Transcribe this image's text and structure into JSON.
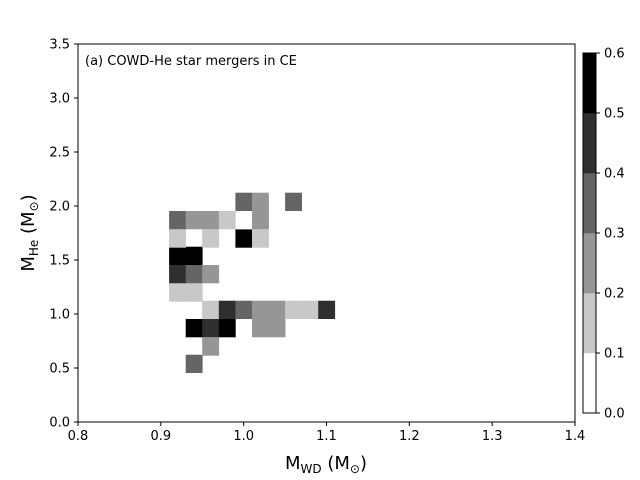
{
  "chart_data": {
    "type": "heatmap",
    "annotation": "(a) COWD-He star mergers in CE",
    "xlabel": {
      "main": "M",
      "sub": "WD",
      "unit": " (M",
      "unit_sub": "⊙",
      "close": ")"
    },
    "ylabel": {
      "main": "M",
      "sub": "He",
      "unit": " (M",
      "unit_sub": "⊙",
      "close": ")"
    },
    "xlim": [
      0.8,
      1.4
    ],
    "ylim": [
      0.0,
      3.5
    ],
    "xticks": [
      "0.8",
      "0.9",
      "1.0",
      "1.1",
      "1.2",
      "1.3",
      "1.4"
    ],
    "yticks": [
      "0.0",
      "0.5",
      "1.0",
      "1.5",
      "2.0",
      "2.5",
      "3.0",
      "3.5"
    ],
    "colorbar": {
      "range": [
        0.0,
        0.6
      ],
      "ticks": [
        "0.0",
        "0.1",
        "0.2",
        "0.3",
        "0.4",
        "0.5",
        "0.6"
      ],
      "colormap": "greys",
      "levels": 6
    },
    "bin_width_x": 0.02,
    "bin_width_y": 0.167,
    "cells": [
      {
        "x": 0.94,
        "y": 0.54,
        "v": 0.35
      },
      {
        "x": 0.96,
        "y": 0.7,
        "v": 0.25
      },
      {
        "x": 0.94,
        "y": 0.87,
        "v": 0.55
      },
      {
        "x": 0.96,
        "y": 0.87,
        "v": 0.45
      },
      {
        "x": 0.98,
        "y": 0.87,
        "v": 0.5
      },
      {
        "x": 1.02,
        "y": 0.87,
        "v": 0.25
      },
      {
        "x": 1.04,
        "y": 0.87,
        "v": 0.25
      },
      {
        "x": 0.96,
        "y": 1.04,
        "v": 0.15
      },
      {
        "x": 0.98,
        "y": 1.04,
        "v": 0.45
      },
      {
        "x": 1.0,
        "y": 1.04,
        "v": 0.35
      },
      {
        "x": 1.02,
        "y": 1.04,
        "v": 0.25
      },
      {
        "x": 1.04,
        "y": 1.04,
        "v": 0.25
      },
      {
        "x": 1.06,
        "y": 1.04,
        "v": 0.15
      },
      {
        "x": 1.08,
        "y": 1.04,
        "v": 0.15
      },
      {
        "x": 1.1,
        "y": 1.04,
        "v": 0.45
      },
      {
        "x": 0.92,
        "y": 1.2,
        "v": 0.15
      },
      {
        "x": 0.94,
        "y": 1.2,
        "v": 0.15
      },
      {
        "x": 0.92,
        "y": 1.37,
        "v": 0.45
      },
      {
        "x": 0.94,
        "y": 1.37,
        "v": 0.35
      },
      {
        "x": 0.96,
        "y": 1.37,
        "v": 0.25
      },
      {
        "x": 0.92,
        "y": 1.54,
        "v": 0.55
      },
      {
        "x": 0.94,
        "y": 1.54,
        "v": 0.55
      },
      {
        "x": 0.92,
        "y": 1.7,
        "v": 0.15
      },
      {
        "x": 0.96,
        "y": 1.7,
        "v": 0.15
      },
      {
        "x": 1.0,
        "y": 1.7,
        "v": 0.5
      },
      {
        "x": 1.02,
        "y": 1.7,
        "v": 0.15
      },
      {
        "x": 0.92,
        "y": 1.87,
        "v": 0.35
      },
      {
        "x": 0.94,
        "y": 1.87,
        "v": 0.25
      },
      {
        "x": 0.96,
        "y": 1.87,
        "v": 0.25
      },
      {
        "x": 0.98,
        "y": 1.87,
        "v": 0.15
      },
      {
        "x": 1.02,
        "y": 1.87,
        "v": 0.25
      },
      {
        "x": 1.0,
        "y": 2.04,
        "v": 0.35
      },
      {
        "x": 1.02,
        "y": 2.04,
        "v": 0.25
      },
      {
        "x": 1.06,
        "y": 2.04,
        "v": 0.35
      }
    ]
  }
}
